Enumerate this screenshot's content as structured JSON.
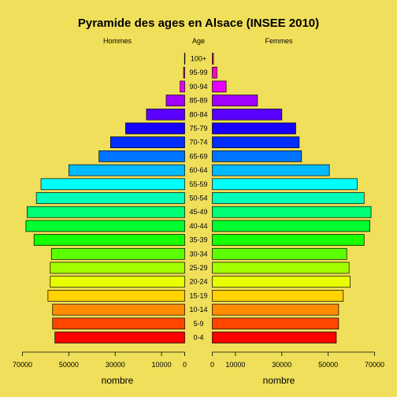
{
  "chart_data": {
    "type": "bar",
    "orientation": "horizontal-pyramid",
    "title": "Pyramide des ages en Alsace (INSEE 2010)",
    "left_header": "Hommes",
    "center_header": "Age",
    "right_header": "Femmes",
    "age_groups": [
      "0-4",
      "5-9",
      "10-14",
      "15-19",
      "20-24",
      "25-29",
      "30-34",
      "35-39",
      "40-44",
      "45-49",
      "50-54",
      "55-59",
      "60-64",
      "65-69",
      "70-74",
      "75-79",
      "80-84",
      "85-89",
      "90-94",
      "95-99",
      "100+"
    ],
    "series": [
      {
        "name": "Hommes",
        "values": [
          56000,
          57000,
          57000,
          59000,
          58000,
          58000,
          57500,
          65000,
          68500,
          68000,
          64000,
          62000,
          50000,
          37000,
          32000,
          25500,
          16500,
          8000,
          2000,
          500,
          100
        ]
      },
      {
        "name": "Femmes",
        "values": [
          53500,
          54500,
          54500,
          56500,
          59500,
          59000,
          58000,
          65500,
          68000,
          68500,
          65500,
          62500,
          50500,
          38500,
          37500,
          36000,
          30000,
          19500,
          6000,
          2000,
          500
        ]
      }
    ],
    "bar_colors": [
      "#FF0000",
      "#FF4600",
      "#FF8C00",
      "#FFD200",
      "#E8FF00",
      "#A2FF00",
      "#5CFF00",
      "#17FF00",
      "#00FF2E",
      "#00FF74",
      "#00FFB9",
      "#00FFFF",
      "#00B9FF",
      "#0074FF",
      "#002EFF",
      "#1700FF",
      "#5C00FF",
      "#A200FF",
      "#E800FF",
      "#FF00D1",
      "#FF008B"
    ],
    "left_axis": {
      "ticks": [
        70000,
        50000,
        30000,
        10000,
        0
      ],
      "tick_labels": [
        "70000",
        "50000",
        "30000",
        "10000",
        "0"
      ],
      "xlabel": "nombre",
      "xlim": [
        0,
        70000
      ]
    },
    "right_axis": {
      "ticks": [
        0,
        10000,
        30000,
        50000,
        70000
      ],
      "tick_labels": [
        "0",
        "10000",
        "30000",
        "50000",
        "70000"
      ],
      "xlabel": "nombre",
      "xlim": [
        0,
        70000
      ]
    },
    "grid": false,
    "background": "#F0DF5A"
  }
}
